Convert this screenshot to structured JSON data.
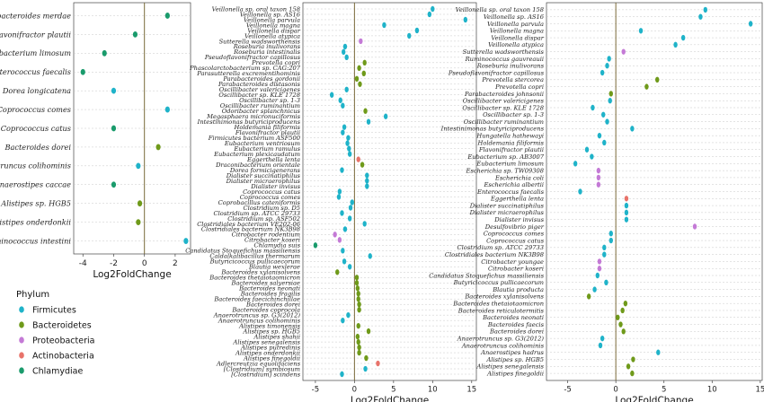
{
  "colors": {
    "Firmicutes": "#1fb3c9",
    "Bacteroidetes": "#6f9a1a",
    "Proteobacteria": "#c47ad6",
    "Actinobacteria": "#e8736a",
    "Chlamydiae": "#1a9b6c"
  },
  "legend": {
    "title": "Phylum",
    "items": [
      "Firmicutes",
      "Bacteroidetes",
      "Proteobacteria",
      "Actinobacteria",
      "Chlamydiae"
    ]
  },
  "chart_data": [
    {
      "type": "scatter",
      "xlabel": "Log2FoldChange",
      "xlim": [
        -4.6,
        3.0
      ],
      "xticks": [
        "-4",
        "-2",
        "0",
        "2"
      ],
      "xtick_values": [
        -4,
        -2,
        0,
        2
      ],
      "points": [
        {
          "label": "Parabacteroides merdae",
          "value": 1.5,
          "phylum": "Chlamydiae"
        },
        {
          "label": "Flavonifractor plautii",
          "value": -0.6,
          "phylum": "Chlamydiae"
        },
        {
          "label": "Eubacterium limosum",
          "value": -2.6,
          "phylum": "Chlamydiae"
        },
        {
          "label": "Enterococcus faecalis",
          "value": -4.0,
          "phylum": "Chlamydiae"
        },
        {
          "label": "Dorea longicatena",
          "value": -2.0,
          "phylum": "Firmicutes"
        },
        {
          "label": "Coprococcus comes",
          "value": 1.5,
          "phylum": "Firmicutes"
        },
        {
          "label": "Coprococcus catus",
          "value": -2.0,
          "phylum": "Chlamydiae"
        },
        {
          "label": "Bacteroides dorei",
          "value": 0.9,
          "phylum": "Bacteroidetes"
        },
        {
          "label": "Anaerotruncus colihominis",
          "value": -0.4,
          "phylum": "Firmicutes"
        },
        {
          "label": "Anaerostipes caccae",
          "value": -2.0,
          "phylum": "Chlamydiae"
        },
        {
          "label": "Alistipes sp. HGB5",
          "value": -0.3,
          "phylum": "Bacteroidetes"
        },
        {
          "label": "Alistipes onderdonkii",
          "value": -0.4,
          "phylum": "Bacteroidetes"
        },
        {
          "label": "Acidaminococcus intestini",
          "value": 2.7,
          "phylum": "Firmicutes"
        }
      ]
    },
    {
      "type": "scatter",
      "xlabel": "Log2FoldChange",
      "xlim": [
        -6.6,
        15.6
      ],
      "xticks": [
        "-5",
        "0",
        "5",
        "10",
        "15"
      ],
      "xtick_values": [
        -5,
        0,
        5,
        10,
        15
      ],
      "points": [
        {
          "label": "Veillonella sp. oral taxon 158",
          "value": 10.0,
          "phylum": "Firmicutes"
        },
        {
          "label": "Veillonella sp. AS16",
          "value": 9.6,
          "phylum": "Firmicutes"
        },
        {
          "label": "Veillonella parvula",
          "value": 14.2,
          "phylum": "Firmicutes"
        },
        {
          "label": "Veillonella magna",
          "value": 3.8,
          "phylum": "Firmicutes"
        },
        {
          "label": "Veillonella dispar",
          "value": 8.0,
          "phylum": "Firmicutes"
        },
        {
          "label": "Veillonella atypica",
          "value": 7.0,
          "phylum": "Firmicutes"
        },
        {
          "label": "Sutterella wadsworthensis",
          "value": 0.8,
          "phylum": "Proteobacteria"
        },
        {
          "label": "Roseburia inulivorans",
          "value": -1.2,
          "phylum": "Firmicutes"
        },
        {
          "label": "Roseburia intestinalis",
          "value": -1.4,
          "phylum": "Firmicutes"
        },
        {
          "label": "Pseudoflavonifractor capillosus",
          "value": -1.0,
          "phylum": "Firmicutes"
        },
        {
          "label": "Prevotella copri",
          "value": 1.3,
          "phylum": "Bacteroidetes"
        },
        {
          "label": "Phascolarctobacterium sp. CAG:207",
          "value": 0.6,
          "phylum": "Bacteroidetes"
        },
        {
          "label": "Parasutterella excrementihominis",
          "value": 1.2,
          "phylum": "Bacteroidetes"
        },
        {
          "label": "Parabacteroides gordonii",
          "value": 0.3,
          "phylum": "Bacteroidetes"
        },
        {
          "label": "Parabacteroides distasonis",
          "value": 0.7,
          "phylum": "Bacteroidetes"
        },
        {
          "label": "Oscillibacter valericigenes",
          "value": -1.0,
          "phylum": "Firmicutes"
        },
        {
          "label": "Oscillibacter sp. KLE 1728",
          "value": -2.9,
          "phylum": "Firmicutes"
        },
        {
          "label": "Oscillibacter sp. 1-3",
          "value": -1.8,
          "phylum": "Firmicutes"
        },
        {
          "label": "Oscillibacter ruminantium",
          "value": -1.5,
          "phylum": "Firmicutes"
        },
        {
          "label": "Odoribacter splanchnicus",
          "value": 1.4,
          "phylum": "Bacteroidetes"
        },
        {
          "label": "Megasphaera micronuciformis",
          "value": 4.0,
          "phylum": "Firmicutes"
        },
        {
          "label": "Intestinimonas butyriciproducens",
          "value": 1.8,
          "phylum": "Firmicutes"
        },
        {
          "label": "Holdemania filiformis",
          "value": -1.3,
          "phylum": "Firmicutes"
        },
        {
          "label": "Flavonifractor plautii",
          "value": -1.5,
          "phylum": "Firmicutes"
        },
        {
          "label": "Firmicutes bacterium ASF500",
          "value": -0.8,
          "phylum": "Firmicutes"
        },
        {
          "label": "Eubacterium ventriosum",
          "value": -0.9,
          "phylum": "Firmicutes"
        },
        {
          "label": "Eubacterium ramulus",
          "value": -0.7,
          "phylum": "Firmicutes"
        },
        {
          "label": "Eubacterium plexicaudatum",
          "value": -0.6,
          "phylum": "Firmicutes"
        },
        {
          "label": "Eggerthella lenta",
          "value": 0.5,
          "phylum": "Actinobacteria"
        },
        {
          "label": "Draconibacterium orientale",
          "value": 1.0,
          "phylum": "Bacteroidetes"
        },
        {
          "label": "Dorea formicigenerans",
          "value": -1.6,
          "phylum": "Firmicutes"
        },
        {
          "label": "Dialister succinatiphilus",
          "value": 1.6,
          "phylum": "Firmicutes"
        },
        {
          "label": "Dialister micraerophilus",
          "value": 1.6,
          "phylum": "Firmicutes"
        },
        {
          "label": "Dialister invisus",
          "value": 1.6,
          "phylum": "Firmicutes"
        },
        {
          "label": "Coprococcus catus",
          "value": -1.9,
          "phylum": "Firmicutes"
        },
        {
          "label": "Coprococcus comes",
          "value": -2.0,
          "phylum": "Firmicutes"
        },
        {
          "label": "Coprobacillus cateniformis",
          "value": -0.3,
          "phylum": "Firmicutes"
        },
        {
          "label": "Clostridium sp. D5",
          "value": -0.5,
          "phylum": "Firmicutes"
        },
        {
          "label": "Clostridium sp. ATCC 29733",
          "value": -1.6,
          "phylum": "Firmicutes"
        },
        {
          "label": "Clostridium sp. ASF502",
          "value": -0.6,
          "phylum": "Firmicutes"
        },
        {
          "label": "Clostridiales bacterium VE202-06",
          "value": 1.3,
          "phylum": "Firmicutes"
        },
        {
          "label": "Clostridiales bacterium NK3B98",
          "value": -1.2,
          "phylum": "Firmicutes"
        },
        {
          "label": "Citrobacter rodentium",
          "value": -2.5,
          "phylum": "Proteobacteria"
        },
        {
          "label": "Citrobacter koseri",
          "value": -1.9,
          "phylum": "Proteobacteria"
        },
        {
          "label": "Chlamydia suis",
          "value": -5.0,
          "phylum": "Chlamydiae"
        },
        {
          "label": "Candidatus Stoquefichus massiliensis",
          "value": -1.5,
          "phylum": "Firmicutes"
        },
        {
          "label": "Caldalkalibacillus thermarum",
          "value": 2.0,
          "phylum": "Firmicutes"
        },
        {
          "label": "Butyricicoccus pullicaecorum",
          "value": -1.3,
          "phylum": "Firmicutes"
        },
        {
          "label": "Blautia wexlerae",
          "value": -0.6,
          "phylum": "Firmicutes"
        },
        {
          "label": "Bacteroides xylanisolvens",
          "value": -2.2,
          "phylum": "Bacteroidetes"
        },
        {
          "label": "Bacteroides thetaiotaomicron",
          "value": 0.3,
          "phylum": "Bacteroidetes"
        },
        {
          "label": "Bacteroides salyersiae",
          "value": 0.3,
          "phylum": "Bacteroidetes"
        },
        {
          "label": "Bacteroides neonati",
          "value": 0.4,
          "phylum": "Bacteroidetes"
        },
        {
          "label": "Bacteroides fragilis",
          "value": 0.5,
          "phylum": "Bacteroidetes"
        },
        {
          "label": "Bacteroides faecichinchillae",
          "value": 0.5,
          "phylum": "Bacteroidetes"
        },
        {
          "label": "Bacteroides dorei",
          "value": 0.6,
          "phylum": "Bacteroidetes"
        },
        {
          "label": "Bacteroides coprocola",
          "value": 0.6,
          "phylum": "Bacteroidetes"
        },
        {
          "label": "Anaerotruncus sp. G3(2012)",
          "value": -0.8,
          "phylum": "Firmicutes"
        },
        {
          "label": "Anaerotruncus colihominis",
          "value": -1.5,
          "phylum": "Firmicutes"
        },
        {
          "label": "Alistipes timonensis",
          "value": 0.5,
          "phylum": "Bacteroidetes"
        },
        {
          "label": "Alistipes sp. HGB5",
          "value": 1.8,
          "phylum": "Bacteroidetes"
        },
        {
          "label": "Alistipes shahii",
          "value": 0.4,
          "phylum": "Bacteroidetes"
        },
        {
          "label": "Alistipes senegalensis",
          "value": 0.5,
          "phylum": "Bacteroidetes"
        },
        {
          "label": "Alistipes putredinis",
          "value": 0.6,
          "phylum": "Bacteroidetes"
        },
        {
          "label": "Alistipes onderdonkii",
          "value": 0.6,
          "phylum": "Bacteroidetes"
        },
        {
          "label": "Alistipes finegoldii",
          "value": 1.5,
          "phylum": "Bacteroidetes"
        },
        {
          "label": "Adlercreutzia equolifaciens",
          "value": 3.0,
          "phylum": "Actinobacteria"
        },
        {
          "label": "[Clostridium] symbiosum",
          "value": 1.4,
          "phylum": "Firmicutes"
        },
        {
          "label": "[Clostridium] scindens",
          "value": -1.6,
          "phylum": "Firmicutes"
        }
      ]
    },
    {
      "type": "scatter",
      "xlabel": "Log2FoldChange",
      "xlim": [
        -7.2,
        15.2
      ],
      "xticks": [
        "-5",
        "0",
        "5",
        "10",
        "15"
      ],
      "xtick_values": [
        -5,
        0,
        5,
        10,
        15
      ],
      "points": [
        {
          "label": "Veillonella sp. oral taxon 158",
          "value": 9.3,
          "phylum": "Firmicutes"
        },
        {
          "label": "Veillonella sp. AS16",
          "value": 8.8,
          "phylum": "Firmicutes"
        },
        {
          "label": "Veillonella parvula",
          "value": 14.0,
          "phylum": "Firmicutes"
        },
        {
          "label": "Veillonella magna",
          "value": 2.6,
          "phylum": "Firmicutes"
        },
        {
          "label": "Veillonella dispar",
          "value": 7.0,
          "phylum": "Firmicutes"
        },
        {
          "label": "Veillonella atypica",
          "value": 6.2,
          "phylum": "Firmicutes"
        },
        {
          "label": "Sutterella wadsworthensis",
          "value": 0.8,
          "phylum": "Proteobacteria"
        },
        {
          "label": "Ruminococcus gauvreauii",
          "value": -0.7,
          "phylum": "Firmicutes"
        },
        {
          "label": "Roseburia inulivorans",
          "value": -0.9,
          "phylum": "Firmicutes"
        },
        {
          "label": "Pseudoflavonifractor capillosus",
          "value": -1.4,
          "phylum": "Firmicutes"
        },
        {
          "label": "Prevotella stercorea",
          "value": 4.3,
          "phylum": "Bacteroidetes"
        },
        {
          "label": "Prevotella copri",
          "value": 3.2,
          "phylum": "Bacteroidetes"
        },
        {
          "label": "Parabacteroides johnsonii",
          "value": -0.5,
          "phylum": "Bacteroidetes"
        },
        {
          "label": "Oscillibacter valericigenes",
          "value": -0.6,
          "phylum": "Firmicutes"
        },
        {
          "label": "Oscillibacter sp. KLE 1728",
          "value": -2.4,
          "phylum": "Firmicutes"
        },
        {
          "label": "Oscillibacter sp. 1-3",
          "value": -1.3,
          "phylum": "Firmicutes"
        },
        {
          "label": "Oscillibacter ruminantium",
          "value": -0.9,
          "phylum": "Firmicutes"
        },
        {
          "label": "Intestinimonas butyriciproducens",
          "value": 1.7,
          "phylum": "Firmicutes"
        },
        {
          "label": "Hungatella hathewayi",
          "value": -1.7,
          "phylum": "Firmicutes"
        },
        {
          "label": "Holdemania filiformis",
          "value": -1.2,
          "phylum": "Firmicutes"
        },
        {
          "label": "Flavonifractor plautii",
          "value": -3.0,
          "phylum": "Firmicutes"
        },
        {
          "label": "Eubacterium sp. AB3007",
          "value": -2.5,
          "phylum": "Firmicutes"
        },
        {
          "label": "Eubacterium limosum",
          "value": -4.2,
          "phylum": "Firmicutes"
        },
        {
          "label": "Escherichia sp. TW09308",
          "value": -1.8,
          "phylum": "Proteobacteria"
        },
        {
          "label": "Escherichia coli",
          "value": -1.8,
          "phylum": "Proteobacteria"
        },
        {
          "label": "Escherichia albertii",
          "value": -1.8,
          "phylum": "Proteobacteria"
        },
        {
          "label": "Enterococcus faecalis",
          "value": -3.7,
          "phylum": "Firmicutes"
        },
        {
          "label": "Eggerthella lenta",
          "value": 1.1,
          "phylum": "Actinobacteria"
        },
        {
          "label": "Dialister succinatiphilus",
          "value": 1.1,
          "phylum": "Firmicutes"
        },
        {
          "label": "Dialister micraerophilus",
          "value": 1.1,
          "phylum": "Firmicutes"
        },
        {
          "label": "Dialister invisus",
          "value": 1.1,
          "phylum": "Firmicutes"
        },
        {
          "label": "Desulfovibrio piger",
          "value": 8.2,
          "phylum": "Proteobacteria"
        },
        {
          "label": "Coprococcus comes",
          "value": -0.5,
          "phylum": "Firmicutes"
        },
        {
          "label": "Coprococcus catus",
          "value": -0.5,
          "phylum": "Firmicutes"
        },
        {
          "label": "Clostridium sp. ATCC 29733",
          "value": -1.2,
          "phylum": "Firmicutes"
        },
        {
          "label": "Clostridiales bacterium NK3B98",
          "value": -1.2,
          "phylum": "Firmicutes"
        },
        {
          "label": "Citrobacter youngae",
          "value": -1.7,
          "phylum": "Proteobacteria"
        },
        {
          "label": "Citrobacter koseri",
          "value": -1.7,
          "phylum": "Proteobacteria"
        },
        {
          "label": "Candidatus Stoquefichus massiliensis",
          "value": -1.9,
          "phylum": "Firmicutes"
        },
        {
          "label": "Butyricicoccus pullicaecorum",
          "value": -1.0,
          "phylum": "Firmicutes"
        },
        {
          "label": "Blautia producta",
          "value": -2.2,
          "phylum": "Firmicutes"
        },
        {
          "label": "Bacteroides xylanisolvens",
          "value": -2.8,
          "phylum": "Bacteroidetes"
        },
        {
          "label": "Bacteroides thetaiotaomicron",
          "value": 1.0,
          "phylum": "Bacteroidetes"
        },
        {
          "label": "Bacteroides reticulotermitis",
          "value": 0.7,
          "phylum": "Bacteroidetes"
        },
        {
          "label": "Bacteroides neonati",
          "value": 0.2,
          "phylum": "Bacteroidetes"
        },
        {
          "label": "Bacteroides faecis",
          "value": 0.5,
          "phylum": "Bacteroidetes"
        },
        {
          "label": "Bacteroides dorei",
          "value": 0.8,
          "phylum": "Bacteroidetes"
        },
        {
          "label": "Anaerotruncus sp. G3(2012)",
          "value": -1.4,
          "phylum": "Firmicutes"
        },
        {
          "label": "Anaerotruncus colihominis",
          "value": -1.6,
          "phylum": "Firmicutes"
        },
        {
          "label": "Anaerostipes hadrus",
          "value": 4.4,
          "phylum": "Firmicutes"
        },
        {
          "label": "Alistipes sp. HGB5",
          "value": 1.8,
          "phylum": "Bacteroidetes"
        },
        {
          "label": "Alistipes senegalensis",
          "value": 1.3,
          "phylum": "Bacteroidetes"
        },
        {
          "label": "Alistipes finegoldii",
          "value": 1.7,
          "phylum": "Bacteroidetes"
        }
      ]
    }
  ]
}
